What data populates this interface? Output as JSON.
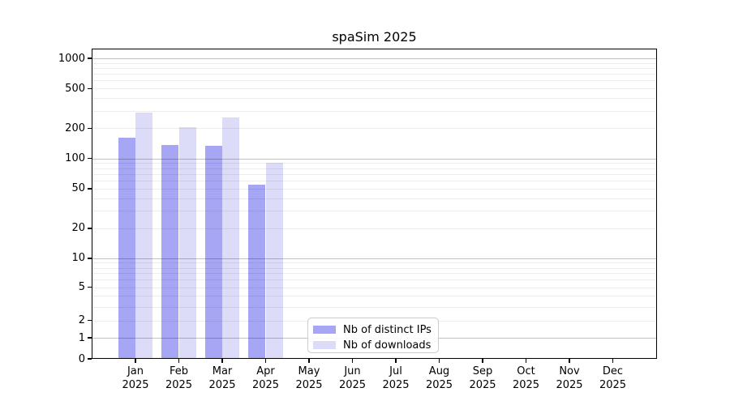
{
  "title": "spaSim 2025",
  "chart_data": {
    "type": "bar",
    "title": "spaSim 2025",
    "categories": [
      "Jan",
      "Feb",
      "Mar",
      "Apr",
      "May",
      "Jun",
      "Jul",
      "Aug",
      "Sep",
      "Oct",
      "Nov",
      "Dec"
    ],
    "year_label": "2025",
    "series": [
      {
        "name": "Nb of distinct IPs",
        "color": "#a6a6f4",
        "values": [
          162,
          137,
          135,
          55,
          0,
          0,
          0,
          0,
          0,
          0,
          0,
          0
        ]
      },
      {
        "name": "Nb of downloads",
        "color": "#dcdcf9",
        "values": [
          285,
          205,
          255,
          90,
          0,
          0,
          0,
          0,
          0,
          0,
          0,
          0
        ]
      }
    ],
    "y_ticks": [
      0,
      1,
      2,
      5,
      10,
      20,
      50,
      100,
      200,
      500,
      1000
    ],
    "y_scale": {
      "type": "asinh",
      "linear_width": 2
    },
    "ylim": [
      0,
      1250
    ],
    "xlabel": "",
    "ylabel": "",
    "grid": {
      "major_color": "#b3b3b3",
      "minor_color": "#ebebeb",
      "grid_above_bars": true
    },
    "legend_position": "lower-center"
  }
}
